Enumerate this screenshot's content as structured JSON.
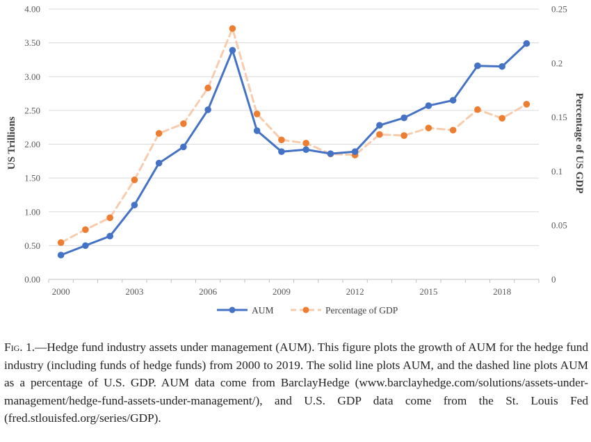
{
  "chart_data": {
    "type": "line",
    "x": [
      "2000",
      "2001",
      "2002",
      "2003",
      "2004",
      "2005",
      "2006",
      "2007",
      "2008",
      "2009",
      "2010",
      "2011",
      "2012",
      "2013",
      "2014",
      "2015",
      "2016",
      "2017",
      "2018",
      "2019"
    ],
    "x_tick_labels": [
      "2000",
      "2003",
      "2006",
      "2009",
      "2012",
      "2015",
      "2018"
    ],
    "series": [
      {
        "name": "AUM",
        "axis": "left",
        "style": "solid",
        "color": "#4472C4",
        "values": [
          0.36,
          0.5,
          0.64,
          1.1,
          1.72,
          1.96,
          2.51,
          3.39,
          2.2,
          1.89,
          1.92,
          1.86,
          1.89,
          2.28,
          2.39,
          2.57,
          2.65,
          3.16,
          3.15,
          3.49
        ]
      },
      {
        "name": "Percentage of GDP",
        "axis": "right",
        "style": "dashed",
        "line_color": "#F8CBAD",
        "marker_color": "#ED7D31",
        "values": [
          0.034,
          0.046,
          0.057,
          0.092,
          0.135,
          0.144,
          0.177,
          0.232,
          0.153,
          0.129,
          0.126,
          0.116,
          0.115,
          0.134,
          0.133,
          0.14,
          0.138,
          0.157,
          0.149,
          0.162
        ]
      }
    ],
    "ylabel": "US Trillions",
    "ylabel_right": "Percentage of US GDP",
    "ylim": [
      0,
      4
    ],
    "ylim_right": [
      0,
      0.25
    ],
    "y_tick_labels": [
      "0.00",
      "0.50",
      "1.00",
      "1.50",
      "2.00",
      "2.50",
      "3.00",
      "3.50",
      "4.00"
    ],
    "y_tick_labels_right": [
      "0",
      "0.05",
      "0.1",
      "0.15",
      "0.2",
      "0.25"
    ],
    "grid": true,
    "legend_position": "bottom"
  },
  "caption": {
    "label": "Fig. 1.",
    "text": "—Hedge fund industry assets under management (AUM). This figure plots the growth of AUM for the hedge fund industry (including funds of hedge funds) from 2000 to 2019. The solid line plots AUM, and the dashed line plots AUM as a percentage of U.S. GDP. AUM data come from BarclayHedge (www.barclayhedge.com/solutions/assets-under-management/hedge-fund-assets-under-management/), and U.S. GDP data come from the St. Louis Fed (fred.stlouisfed.org/series/GDP)."
  }
}
